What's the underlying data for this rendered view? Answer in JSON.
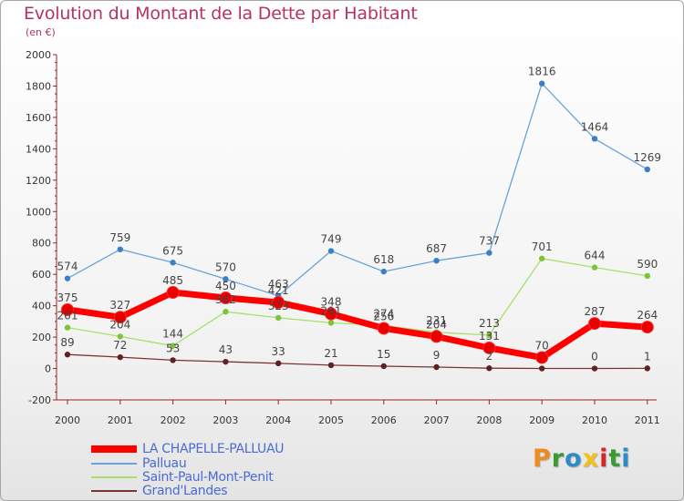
{
  "chart_data": {
    "type": "line",
    "title": "Evolution du Montant de la Dette par Habitant",
    "subtitle": "(en €)",
    "categories": [
      "2000",
      "2001",
      "2002",
      "2003",
      "2004",
      "2005",
      "2006",
      "2007",
      "2008",
      "2009",
      "2010",
      "2011"
    ],
    "ylim": [
      -200,
      2000
    ],
    "yticks": [
      -200,
      0,
      200,
      400,
      600,
      800,
      1000,
      1200,
      1400,
      1600,
      1800,
      2000
    ],
    "ytick_labels": [
      "-200",
      "0",
      "200",
      "400",
      "600",
      "800",
      "1000",
      "1200",
      "1400",
      "1600",
      "1800",
      "2000"
    ],
    "grid": false,
    "legend_position": "bottom-left",
    "series": [
      {
        "name": "LA CHAPELLE-PALLUAU",
        "color": "#ff0000",
        "marker_color": "#e80000",
        "values": [
          375,
          327,
          485,
          450,
          421,
          348,
          256,
          204,
          131,
          70,
          287,
          264
        ],
        "labels": [
          "375",
          "327",
          "485",
          "450",
          "421",
          "348",
          "256",
          "204",
          "131",
          "70",
          "287",
          "264"
        ]
      },
      {
        "name": "Palluau",
        "color": "#6aa3d8",
        "marker_color": "#3b80c4",
        "values": [
          574,
          759,
          675,
          570,
          463,
          749,
          618,
          687,
          737,
          1816,
          1464,
          1269
        ],
        "labels": [
          "574",
          "759",
          "675",
          "570",
          "463",
          "749",
          "618",
          "687",
          "737",
          "1816",
          "1464",
          "1269"
        ]
      },
      {
        "name": "Saint-Paul-Mont-Penit",
        "color": "#a6e06b",
        "marker_color": "#7dc33c",
        "values": [
          261,
          204,
          144,
          362,
          323,
          291,
          274,
          231,
          213,
          701,
          644,
          590
        ],
        "labels": [
          "261",
          "204",
          "144",
          "362",
          "323",
          "291",
          "274",
          "231",
          "213",
          "701",
          "644",
          "590"
        ]
      },
      {
        "name": "Grand'Landes",
        "color": "#7a3434",
        "marker_color": "#5e2222",
        "values": [
          89,
          72,
          53,
          43,
          33,
          21,
          15,
          9,
          2,
          0,
          0,
          1
        ],
        "labels": [
          "89",
          "72",
          "53",
          "43",
          "33",
          "21",
          "15",
          "9",
          "2",
          "",
          "0",
          "1"
        ]
      }
    ]
  },
  "brand": {
    "logo_text": "Proxiti",
    "logo_colors": [
      "#f08a1c",
      "#3a9a34",
      "#2e8bc9",
      "#f2c11b",
      "#d6262a",
      "#3a9a34",
      "#2e8bc9"
    ]
  }
}
